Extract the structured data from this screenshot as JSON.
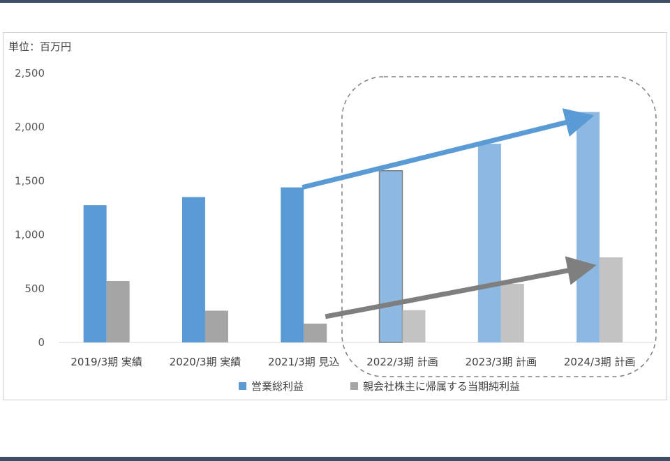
{
  "chart_data": {
    "type": "bar",
    "unit_label": "単位：百万円",
    "categories": [
      "2019/3期 実績",
      "2020/3期 実績",
      "2021/3期 見込",
      "2022/3期 計画",
      "2023/3期 計画",
      "2024/3期 計画"
    ],
    "series": [
      {
        "name": "営業総利益",
        "values": [
          1275,
          1350,
          1440,
          1595,
          1845,
          2140
        ],
        "color": "#5b9bd5",
        "plan_color": "#8db8e2"
      },
      {
        "name": "親会社株主に帰属する当期純利益",
        "values": [
          570,
          295,
          175,
          300,
          545,
          790
        ],
        "color": "#a5a5a5",
        "plan_color": "#c3c3c3"
      }
    ],
    "plan_from_index": 3,
    "ylim": [
      0,
      2500
    ],
    "yticks": [
      "0",
      "500",
      "1,000",
      "1,500",
      "2,000",
      "2,500"
    ],
    "ytick_values": [
      0,
      500,
      1000,
      1500,
      2000,
      2500
    ],
    "grid": false,
    "legend_position": "bottom",
    "annotations": {
      "trend_arrows": [
        {
          "series": "営業総利益",
          "from_index": 2,
          "to_index": 5,
          "color": "#5b9bd5"
        },
        {
          "series": "親会社株主に帰属する当期純利益",
          "from_index": 2,
          "to_index": 5,
          "color": "#7f7f7f"
        }
      ],
      "plan_highlight": "dashed rounded box around plan years"
    }
  }
}
